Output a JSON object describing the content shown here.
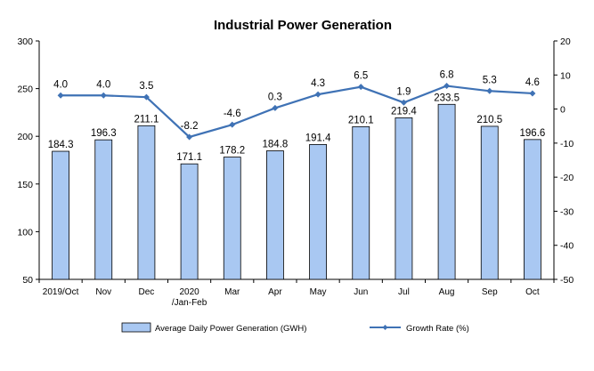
{
  "chart_data": {
    "type": "bar",
    "title": "Industrial Power Generation",
    "categories": [
      [
        "2019/Oct"
      ],
      [
        "Nov"
      ],
      [
        "Dec"
      ],
      [
        "2020",
        "/Jan-Feb"
      ],
      [
        "Mar"
      ],
      [
        "Apr"
      ],
      [
        "May"
      ],
      [
        "Jun"
      ],
      [
        "Jul"
      ],
      [
        "Aug"
      ],
      [
        "Sep"
      ],
      [
        "Oct"
      ]
    ],
    "series": [
      {
        "name": "Average Daily Power Generation (GWH)",
        "type": "bar",
        "axis": "left",
        "color": "#a9c8f2",
        "border": "#000000",
        "values": [
          184.3,
          196.3,
          211.1,
          171.1,
          178.2,
          184.8,
          191.4,
          210.1,
          219.4,
          233.5,
          210.5,
          196.6
        ],
        "labels": [
          "184.3",
          "196.3",
          "211.1",
          "171.1",
          "178.2",
          "184.8",
          "191.4",
          "210.1",
          "219.4",
          "233.5",
          "210.5",
          "196.6"
        ]
      },
      {
        "name": "Growth Rate (%)",
        "type": "line",
        "axis": "right",
        "color": "#3f72b5",
        "values": [
          4.0,
          4.0,
          3.5,
          -8.2,
          -4.6,
          0.3,
          4.3,
          6.5,
          1.9,
          6.8,
          5.3,
          4.6
        ],
        "labels": [
          "4.0",
          "4.0",
          "3.5",
          "-8.2",
          "-4.6",
          "0.3",
          "4.3",
          "6.5",
          "1.9",
          "6.8",
          "5.3",
          "4.6"
        ]
      }
    ],
    "y_left": {
      "min": 50,
      "max": 300,
      "ticks": [
        50,
        100,
        150,
        200,
        250,
        300
      ]
    },
    "y_right": {
      "min": -50,
      "max": 20,
      "ticks": [
        -50,
        -40,
        -30,
        -20,
        -10,
        0,
        10,
        20
      ]
    },
    "grid": false,
    "legend_position": "bottom"
  }
}
